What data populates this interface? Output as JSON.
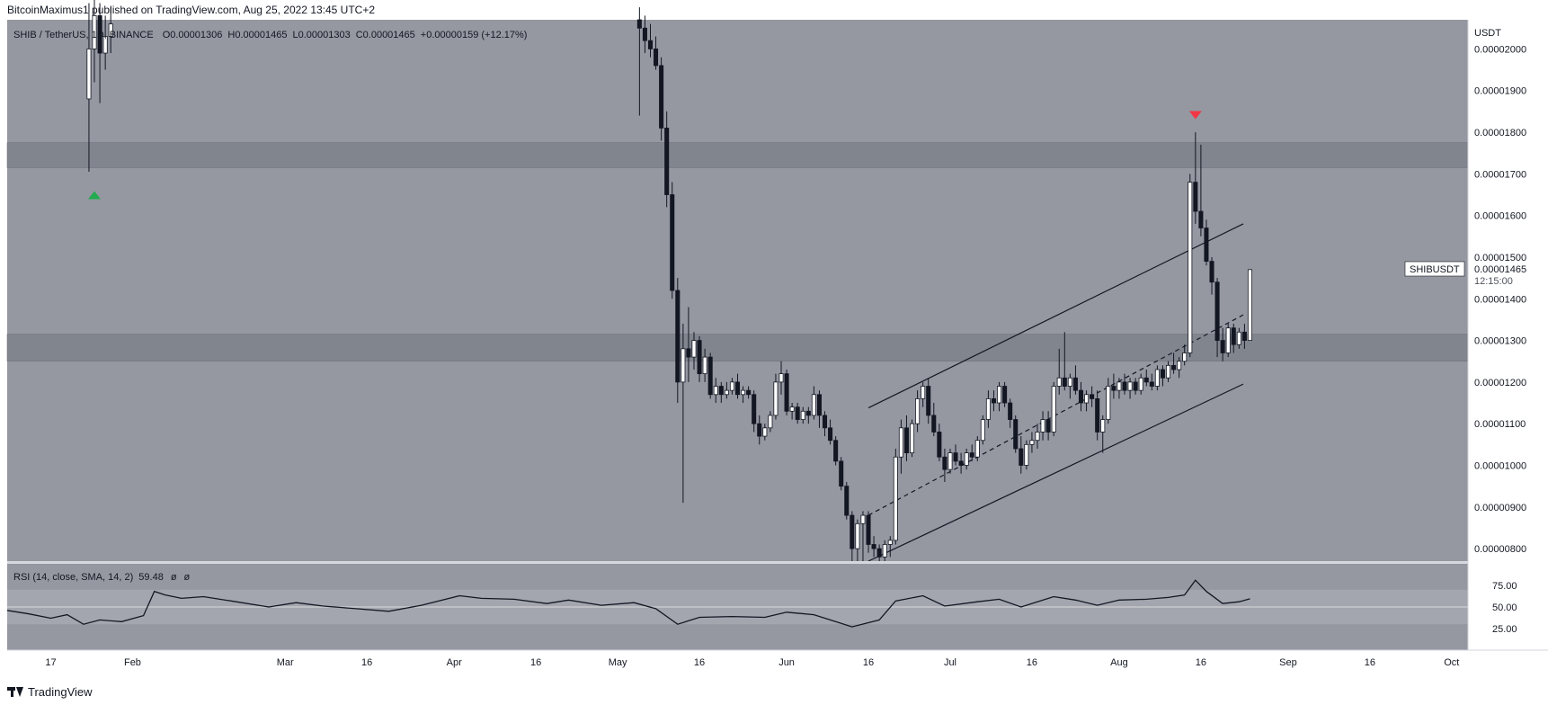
{
  "header": {
    "published_by": "BitcoinMaximus1 published on TradingView.com, Aug 25, 2022 13:45 UTC+2"
  },
  "legend": {
    "symbol": "SHIB / TetherUS, 1D, BINANCE",
    "open_label": "O",
    "open": "0.00001306",
    "high_label": "H",
    "high": "0.00001465",
    "low_label": "L",
    "low": "0.00001303",
    "close_label": "C",
    "close": "0.00001465",
    "change": "+0.00000159 (+12.17%)"
  },
  "price_axis": {
    "unit": "USDT",
    "ticks": [
      "0.00002000",
      "0.00001900",
      "0.00001800",
      "0.00001700",
      "0.00001600",
      "0.00001500",
      "0.00001400",
      "0.00001300",
      "0.00001200",
      "0.00001100",
      "0.00001000",
      "0.00000900",
      "0.00000800"
    ]
  },
  "last_price": {
    "symbol": "SHIBUSDT",
    "price": "0.00001465",
    "countdown": "12:15:00"
  },
  "rsi": {
    "label": "RSI (14, close, SMA, 14, 2)",
    "value": "59.48",
    "extra1": "ø",
    "extra2": "ø",
    "ticks": [
      "75.00",
      "50.00",
      "25.00"
    ]
  },
  "time_axis": {
    "labels": [
      "17",
      "Feb",
      "Mar",
      "16",
      "Apr",
      "16",
      "May",
      "16",
      "Jun",
      "16",
      "Jul",
      "16",
      "Aug",
      "16",
      "Sep",
      "16",
      "Oct"
    ]
  },
  "footer": {
    "brand": "TradingView"
  },
  "colors": {
    "pane_bg": "#9598a1",
    "zone": "#7e818b",
    "bull": "#ffffff",
    "bear": "#131722",
    "arrow_up": "#22ab4f",
    "arrow_down": "#f23645"
  },
  "chart_data": {
    "type": "candlestick",
    "x_range": [
      "2022-01-09",
      "2022-10-04"
    ],
    "ylim": [
      7.7e-06,
      2.07e-05
    ],
    "highlighted_zones": [
      {
        "from": 1.715e-05,
        "to": 1.775e-05
      },
      {
        "from": 1.25e-05,
        "to": 1.315e-05
      }
    ],
    "ascending_channel": {
      "upper": [
        [
          "2022-06-16",
          1.138e-05
        ],
        [
          "2022-10-04",
          1.845e-05
        ]
      ],
      "middle": [
        [
          "2022-06-16",
          8.8e-06
        ],
        [
          "2022-10-04",
          1.65e-05
        ]
      ],
      "lower": [
        [
          "2022-06-16",
          7.7e-06
        ],
        [
          "2022-10-04",
          1.45e-05
        ]
      ]
    },
    "markers": [
      {
        "date": "2022-01-25",
        "price": 1.65e-05,
        "type": "arrow-up"
      },
      {
        "date": "2022-08-15",
        "price": 1.84e-05,
        "type": "arrow-down"
      }
    ],
    "candles": [
      [
        "2022-01-24",
        1.88e-05,
        2.11e-05,
        1.705e-05,
        2e-05
      ],
      [
        "2022-01-25",
        2e-05,
        2.12e-05,
        1.92e-05,
        2.08e-05
      ],
      [
        "2022-01-26",
        2.08e-05,
        2.11e-05,
        1.87e-05,
        1.99e-05
      ],
      [
        "2022-01-27",
        1.99e-05,
        2.08e-05,
        1.95e-05,
        2.03e-05
      ],
      [
        "2022-01-28",
        2.03e-05,
        2.1e-05,
        1.99e-05,
        2.06e-05
      ],
      [
        "2022-05-05",
        2.07e-05,
        2.1e-05,
        1.84e-05,
        2.05e-05
      ],
      [
        "2022-05-06",
        2.05e-05,
        2.08e-05,
        1.99e-05,
        2.02e-05
      ],
      [
        "2022-05-07",
        2.02e-05,
        2.06e-05,
        1.98e-05,
        2e-05
      ],
      [
        "2022-05-08",
        2e-05,
        2.03e-05,
        1.95e-05,
        1.96e-05
      ],
      [
        "2022-05-09",
        1.96e-05,
        1.98e-05,
        1.78e-05,
        1.81e-05
      ],
      [
        "2022-05-10",
        1.81e-05,
        1.85e-05,
        1.62e-05,
        1.65e-05
      ],
      [
        "2022-05-11",
        1.65e-05,
        1.68e-05,
        1.4e-05,
        1.42e-05
      ],
      [
        "2022-05-12",
        1.42e-05,
        1.45e-05,
        1.15e-05,
        1.2e-05
      ],
      [
        "2022-05-13",
        1.2e-05,
        1.34e-05,
        9.1e-06,
        1.28e-05
      ],
      [
        "2022-05-14",
        1.28e-05,
        1.38e-05,
        1.2e-05,
        1.26e-05
      ],
      [
        "2022-05-15",
        1.26e-05,
        1.32e-05,
        1.23e-05,
        1.3e-05
      ],
      [
        "2022-05-16",
        1.3e-05,
        1.31e-05,
        1.2e-05,
        1.22e-05
      ],
      [
        "2022-05-17",
        1.22e-05,
        1.28e-05,
        1.2e-05,
        1.26e-05
      ],
      [
        "2022-05-18",
        1.26e-05,
        1.27e-05,
        1.16e-05,
        1.17e-05
      ],
      [
        "2022-05-19",
        1.17e-05,
        1.21e-05,
        1.15e-05,
        1.19e-05
      ],
      [
        "2022-05-20",
        1.19e-05,
        1.2e-05,
        1.15e-05,
        1.17e-05
      ],
      [
        "2022-05-21",
        1.17e-05,
        1.2e-05,
        1.16e-05,
        1.18e-05
      ],
      [
        "2022-05-22",
        1.18e-05,
        1.21e-05,
        1.17e-05,
        1.2e-05
      ],
      [
        "2022-05-23",
        1.2e-05,
        1.22e-05,
        1.16e-05,
        1.17e-05
      ],
      [
        "2022-05-24",
        1.17e-05,
        1.19e-05,
        1.15e-05,
        1.18e-05
      ],
      [
        "2022-05-25",
        1.18e-05,
        1.19e-05,
        1.16e-05,
        1.17e-05
      ],
      [
        "2022-05-26",
        1.17e-05,
        1.18e-05,
        1.08e-05,
        1.1e-05
      ],
      [
        "2022-05-27",
        1.1e-05,
        1.12e-05,
        1.05e-05,
        1.07e-05
      ],
      [
        "2022-05-28",
        1.07e-05,
        1.1e-05,
        1.06e-05,
        1.09e-05
      ],
      [
        "2022-05-29",
        1.09e-05,
        1.13e-05,
        1.08e-05,
        1.12e-05
      ],
      [
        "2022-05-30",
        1.12e-05,
        1.22e-05,
        1.11e-05,
        1.2e-05
      ],
      [
        "2022-05-31",
        1.2e-05,
        1.25e-05,
        1.17e-05,
        1.22e-05
      ],
      [
        "2022-06-01",
        1.22e-05,
        1.23e-05,
        1.12e-05,
        1.13e-05
      ],
      [
        "2022-06-02",
        1.13e-05,
        1.15e-05,
        1.11e-05,
        1.14e-05
      ],
      [
        "2022-06-03",
        1.14e-05,
        1.15e-05,
        1.1e-05,
        1.11e-05
      ],
      [
        "2022-06-04",
        1.11e-05,
        1.14e-05,
        1.1e-05,
        1.13e-05
      ],
      [
        "2022-06-05",
        1.13e-05,
        1.14e-05,
        1.1e-05,
        1.12e-05
      ],
      [
        "2022-06-06",
        1.12e-05,
        1.19e-05,
        1.11e-05,
        1.17e-05
      ],
      [
        "2022-06-07",
        1.17e-05,
        1.18e-05,
        1.09e-05,
        1.12e-05
      ],
      [
        "2022-06-08",
        1.12e-05,
        1.13e-05,
        1.07e-05,
        1.09e-05
      ],
      [
        "2022-06-09",
        1.09e-05,
        1.11e-05,
        1.05e-05,
        1.06e-05
      ],
      [
        "2022-06-10",
        1.06e-05,
        1.07e-05,
        1e-05,
        1.01e-05
      ],
      [
        "2022-06-11",
        1.01e-05,
        1.02e-05,
        9.4e-06,
        9.5e-06
      ],
      [
        "2022-06-12",
        9.5e-06,
        9.6e-06,
        8.7e-06,
        8.8e-06
      ],
      [
        "2022-06-13",
        8.8e-06,
        8.9e-06,
        7.7e-06,
        8e-06
      ],
      [
        "2022-06-14",
        8e-06,
        8.7e-06,
        7.7e-06,
        8.6e-06
      ],
      [
        "2022-06-15",
        8.6e-06,
        8.9e-06,
        7.7e-06,
        8.8e-06
      ],
      [
        "2022-06-16",
        8.8e-06,
        8.9e-06,
        7.9e-06,
        8.1e-06
      ],
      [
        "2022-06-17",
        8.1e-06,
        8.3e-06,
        7.8e-06,
        8e-06
      ],
      [
        "2022-06-18",
        8e-06,
        8.1e-06,
        7.7e-06,
        7.8e-06
      ],
      [
        "2022-06-19",
        7.8e-06,
        8.2e-06,
        7.7e-06,
        8.1e-06
      ],
      [
        "2022-06-20",
        8.1e-06,
        8.3e-06,
        7.8e-06,
        8.2e-06
      ],
      [
        "2022-06-21",
        8.2e-06,
        1.04e-05,
        8.1e-06,
        1.02e-05
      ],
      [
        "2022-06-22",
        1.02e-05,
        1.11e-05,
        9.8e-06,
        1.09e-05
      ],
      [
        "2022-06-23",
        1.09e-05,
        1.12e-05,
        1.01e-05,
        1.03e-05
      ],
      [
        "2022-06-24",
        1.03e-05,
        1.11e-05,
        1.02e-05,
        1.1e-05
      ],
      [
        "2022-06-25",
        1.1e-05,
        1.18e-05,
        1.08e-05,
        1.16e-05
      ],
      [
        "2022-06-26",
        1.16e-05,
        1.2e-05,
        1.14e-05,
        1.19e-05
      ],
      [
        "2022-06-27",
        1.19e-05,
        1.21e-05,
        1.1e-05,
        1.12e-05
      ],
      [
        "2022-06-28",
        1.12e-05,
        1.15e-05,
        1.07e-05,
        1.08e-05
      ],
      [
        "2022-06-29",
        1.08e-05,
        1.1e-05,
        1.01e-05,
        1.02e-05
      ],
      [
        "2022-06-30",
        1.02e-05,
        1.04e-05,
        9.6e-06,
        9.9e-06
      ],
      [
        "2022-07-01",
        9.9e-06,
        1.04e-05,
        9.8e-06,
        1.03e-05
      ],
      [
        "2022-07-02",
        1.03e-05,
        1.05e-05,
        1e-05,
        1.01e-05
      ],
      [
        "2022-07-03",
        1.01e-05,
        1.03e-05,
        9.8e-06,
        1e-05
      ],
      [
        "2022-07-04",
        1e-05,
        1.04e-05,
        9.9e-06,
        1.03e-05
      ],
      [
        "2022-07-05",
        1.03e-05,
        1.05e-05,
        1.01e-05,
        1.02e-05
      ],
      [
        "2022-07-06",
        1.02e-05,
        1.07e-05,
        1.01e-05,
        1.06e-05
      ],
      [
        "2022-07-07",
        1.06e-05,
        1.12e-05,
        1.05e-05,
        1.11e-05
      ],
      [
        "2022-07-08",
        1.11e-05,
        1.18e-05,
        1.09e-05,
        1.16e-05
      ],
      [
        "2022-07-09",
        1.16e-05,
        1.18e-05,
        1.13e-05,
        1.15e-05
      ],
      [
        "2022-07-10",
        1.15e-05,
        1.2e-05,
        1.13e-05,
        1.19e-05
      ],
      [
        "2022-07-11",
        1.19e-05,
        1.2e-05,
        1.14e-05,
        1.15e-05
      ],
      [
        "2022-07-12",
        1.15e-05,
        1.16e-05,
        1.09e-05,
        1.11e-05
      ],
      [
        "2022-07-13",
        1.11e-05,
        1.12e-05,
        1.03e-05,
        1.04e-05
      ],
      [
        "2022-07-14",
        1.04e-05,
        1.07e-05,
        9.8e-06,
        1e-05
      ],
      [
        "2022-07-15",
        1e-05,
        1.06e-05,
        9.9e-06,
        1.05e-05
      ],
      [
        "2022-07-16",
        1.05e-05,
        1.08e-05,
        1.03e-05,
        1.06e-05
      ],
      [
        "2022-07-17",
        1.06e-05,
        1.1e-05,
        1.04e-05,
        1.08e-05
      ],
      [
        "2022-07-18",
        1.08e-05,
        1.13e-05,
        1.06e-05,
        1.11e-05
      ],
      [
        "2022-07-19",
        1.11e-05,
        1.13e-05,
        1.06e-05,
        1.08e-05
      ],
      [
        "2022-07-20",
        1.08e-05,
        1.2e-05,
        1.07e-05,
        1.19e-05
      ],
      [
        "2022-07-21",
        1.19e-05,
        1.28e-05,
        1.17e-05,
        1.21e-05
      ],
      [
        "2022-07-22",
        1.21e-05,
        1.32e-05,
        1.18e-05,
        1.19e-05
      ],
      [
        "2022-07-23",
        1.19e-05,
        1.22e-05,
        1.16e-05,
        1.21e-05
      ],
      [
        "2022-07-24",
        1.21e-05,
        1.24e-05,
        1.17e-05,
        1.18e-05
      ],
      [
        "2022-07-25",
        1.18e-05,
        1.2e-05,
        1.13e-05,
        1.15e-05
      ],
      [
        "2022-07-26",
        1.15e-05,
        1.18e-05,
        1.13e-05,
        1.17e-05
      ],
      [
        "2022-07-27",
        1.17e-05,
        1.19e-05,
        1.14e-05,
        1.16e-05
      ],
      [
        "2022-07-28",
        1.16e-05,
        1.18e-05,
        1.06e-05,
        1.08e-05
      ],
      [
        "2022-07-29",
        1.08e-05,
        1.12e-05,
        1.03e-05,
        1.11e-05
      ],
      [
        "2022-07-30",
        1.11e-05,
        1.21e-05,
        1.1e-05,
        1.19e-05
      ],
      [
        "2022-07-31",
        1.19e-05,
        1.22e-05,
        1.16e-05,
        1.18e-05
      ],
      [
        "2022-08-01",
        1.18e-05,
        1.21e-05,
        1.16e-05,
        1.2e-05
      ],
      [
        "2022-08-02",
        1.2e-05,
        1.22e-05,
        1.17e-05,
        1.18e-05
      ],
      [
        "2022-08-03",
        1.18e-05,
        1.21e-05,
        1.16e-05,
        1.2e-05
      ],
      [
        "2022-08-04",
        1.2e-05,
        1.21e-05,
        1.17e-05,
        1.18e-05
      ],
      [
        "2022-08-05",
        1.18e-05,
        1.22e-05,
        1.17e-05,
        1.21e-05
      ],
      [
        "2022-08-06",
        1.21e-05,
        1.23e-05,
        1.19e-05,
        1.2e-05
      ],
      [
        "2022-08-07",
        1.2e-05,
        1.22e-05,
        1.18e-05,
        1.19e-05
      ],
      [
        "2022-08-08",
        1.19e-05,
        1.24e-05,
        1.18e-05,
        1.23e-05
      ],
      [
        "2022-08-09",
        1.23e-05,
        1.24e-05,
        1.19e-05,
        1.21e-05
      ],
      [
        "2022-08-10",
        1.21e-05,
        1.25e-05,
        1.2e-05,
        1.24e-05
      ],
      [
        "2022-08-11",
        1.24e-05,
        1.27e-05,
        1.22e-05,
        1.23e-05
      ],
      [
        "2022-08-12",
        1.23e-05,
        1.26e-05,
        1.21e-05,
        1.25e-05
      ],
      [
        "2022-08-13",
        1.25e-05,
        1.29e-05,
        1.24e-05,
        1.27e-05
      ],
      [
        "2022-08-14",
        1.27e-05,
        1.7e-05,
        1.26e-05,
        1.68e-05
      ],
      [
        "2022-08-15",
        1.68e-05,
        1.8e-05,
        1.58e-05,
        1.61e-05
      ],
      [
        "2022-08-16",
        1.61e-05,
        1.77e-05,
        1.55e-05,
        1.57e-05
      ],
      [
        "2022-08-17",
        1.57e-05,
        1.59e-05,
        1.48e-05,
        1.49e-05
      ],
      [
        "2022-08-18",
        1.49e-05,
        1.5e-05,
        1.41e-05,
        1.44e-05
      ],
      [
        "2022-08-19",
        1.44e-05,
        1.45e-05,
        1.26e-05,
        1.3e-05
      ],
      [
        "2022-08-20",
        1.3e-05,
        1.33e-05,
        1.25e-05,
        1.27e-05
      ],
      [
        "2022-08-21",
        1.27e-05,
        1.34e-05,
        1.26e-05,
        1.33e-05
      ],
      [
        "2022-08-22",
        1.33e-05,
        1.34e-05,
        1.27e-05,
        1.29e-05
      ],
      [
        "2022-08-23",
        1.29e-05,
        1.33e-05,
        1.28e-05,
        1.32e-05
      ],
      [
        "2022-08-24",
        1.32e-05,
        1.34e-05,
        1.28e-05,
        1.3e-05
      ],
      [
        "2022-08-25",
        1.3e-05,
        1.47e-05,
        1.3e-05,
        1.47e-05
      ]
    ],
    "rsi_series": [
      [
        "2022-01-09",
        46
      ],
      [
        "2022-01-13",
        42
      ],
      [
        "2022-01-17",
        37
      ],
      [
        "2022-01-20",
        41
      ],
      [
        "2022-01-23",
        30
      ],
      [
        "2022-01-26",
        35
      ],
      [
        "2022-01-30",
        33
      ],
      [
        "2022-02-03",
        40
      ],
      [
        "2022-02-05",
        68
      ],
      [
        "2022-02-07",
        64
      ],
      [
        "2022-02-10",
        60
      ],
      [
        "2022-02-14",
        62
      ],
      [
        "2022-02-20",
        56
      ],
      [
        "2022-02-26",
        50
      ],
      [
        "2022-03-03",
        55
      ],
      [
        "2022-03-08",
        51
      ],
      [
        "2022-03-14",
        48
      ],
      [
        "2022-03-20",
        45
      ],
      [
        "2022-03-26",
        52
      ],
      [
        "2022-04-02",
        63
      ],
      [
        "2022-04-06",
        60
      ],
      [
        "2022-04-12",
        59
      ],
      [
        "2022-04-18",
        54
      ],
      [
        "2022-04-22",
        58
      ],
      [
        "2022-04-28",
        52
      ],
      [
        "2022-05-04",
        55
      ],
      [
        "2022-05-08",
        48
      ],
      [
        "2022-05-12",
        30
      ],
      [
        "2022-05-16",
        38
      ],
      [
        "2022-05-22",
        39
      ],
      [
        "2022-05-28",
        38
      ],
      [
        "2022-06-01",
        44
      ],
      [
        "2022-06-06",
        41
      ],
      [
        "2022-06-10",
        33
      ],
      [
        "2022-06-13",
        27
      ],
      [
        "2022-06-18",
        35
      ],
      [
        "2022-06-21",
        57
      ],
      [
        "2022-06-26",
        63
      ],
      [
        "2022-06-30",
        51
      ],
      [
        "2022-07-06",
        56
      ],
      [
        "2022-07-10",
        59
      ],
      [
        "2022-07-14",
        50
      ],
      [
        "2022-07-20",
        62
      ],
      [
        "2022-07-24",
        58
      ],
      [
        "2022-07-28",
        52
      ],
      [
        "2022-08-01",
        58
      ],
      [
        "2022-08-06",
        59
      ],
      [
        "2022-08-10",
        61
      ],
      [
        "2022-08-13",
        64
      ],
      [
        "2022-08-15",
        81
      ],
      [
        "2022-08-17",
        68
      ],
      [
        "2022-08-20",
        54
      ],
      [
        "2022-08-23",
        56
      ],
      [
        "2022-08-25",
        59.48
      ]
    ]
  }
}
